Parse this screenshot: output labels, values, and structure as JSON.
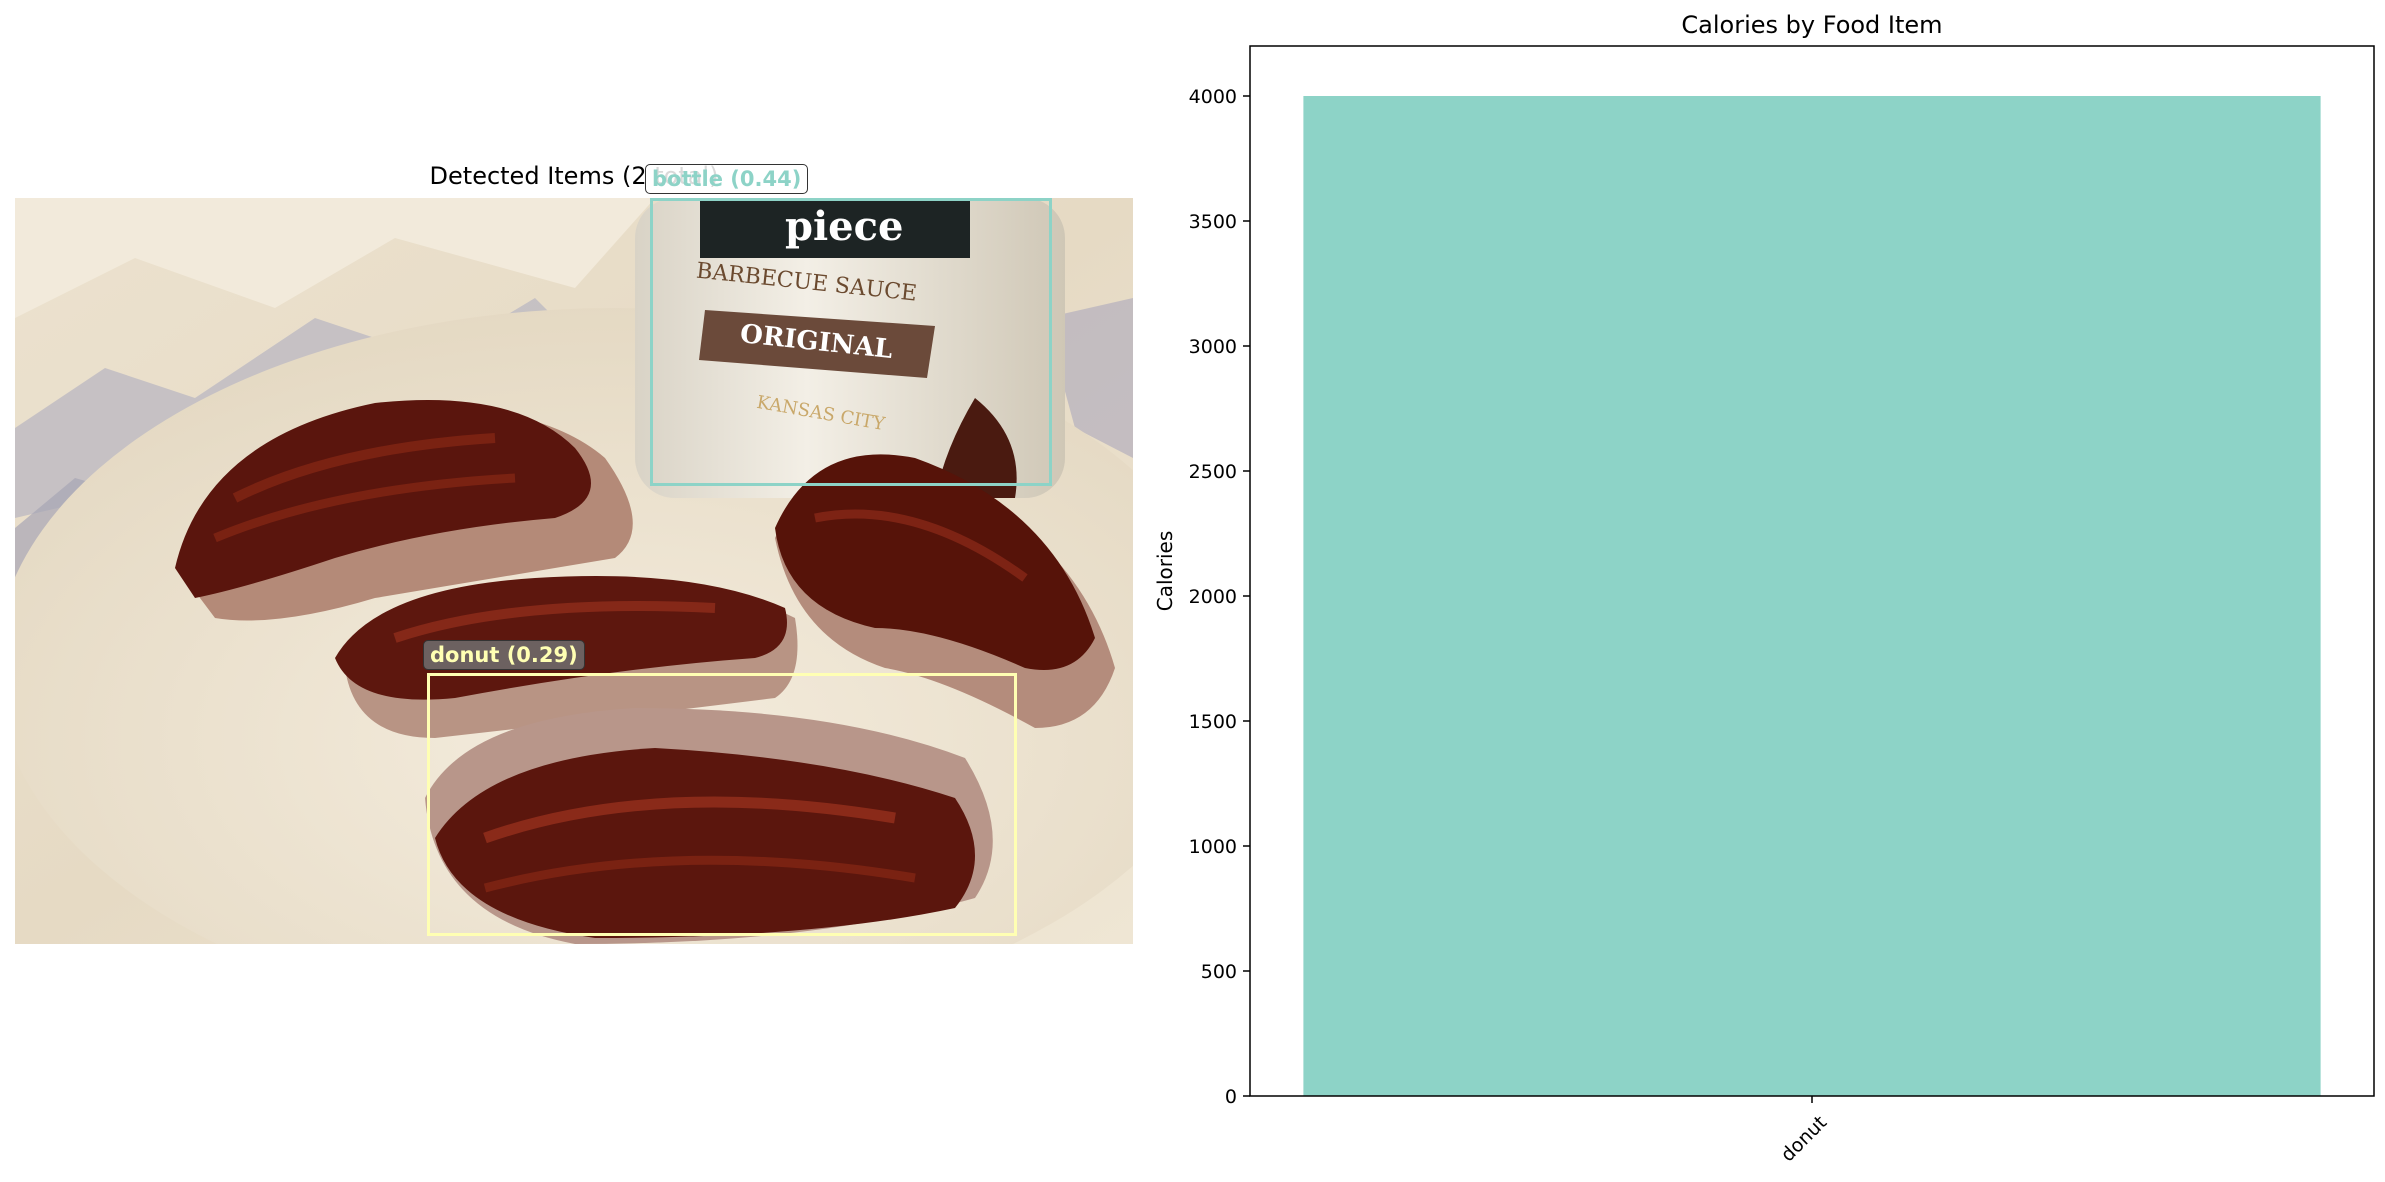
{
  "detection_panel": {
    "title": "Detected Items (2 total)",
    "detections": [
      {
        "label": "bottle (0.44)",
        "color": "#8dd3c7"
      },
      {
        "label": "donut (0.29)",
        "color": "#ffffb3"
      }
    ],
    "photo_text": {
      "brand": "piece",
      "line1": "BARBECUE SAUCE",
      "line2": "ORIGINAL",
      "line3": "KANSAS CITY"
    }
  },
  "chart_data": {
    "type": "bar",
    "title": "Calories by Food Item",
    "categories": [
      "donut"
    ],
    "values": [
      4000
    ],
    "xlabel": "",
    "ylabel": "Calories",
    "ylim": [
      0,
      4200
    ],
    "yticks": [
      0,
      500,
      1000,
      1500,
      2000,
      2500,
      3000,
      3500,
      4000
    ],
    "bar_color": "#8dd3c7",
    "grid": false
  }
}
